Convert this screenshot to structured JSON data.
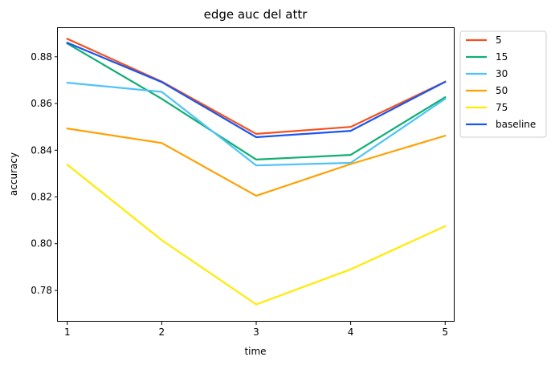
{
  "chart_data": {
    "type": "line",
    "title": "edge auc del attr",
    "xlabel": "time",
    "ylabel": "accuracy",
    "x": [
      1,
      2,
      3,
      4,
      5
    ],
    "xticks": [
      "1",
      "2",
      "3",
      "4",
      "5"
    ],
    "yticks": [
      "0.78",
      "0.80",
      "0.82",
      "0.84",
      "0.86",
      "0.88"
    ],
    "xlim": [
      0.9,
      5.1
    ],
    "ylim": [
      0.7666,
      0.8923
    ],
    "grid": false,
    "legend_position": "outside-top-right",
    "series": [
      {
        "name": "5",
        "color": "#F4511E",
        "values": [
          0.8877,
          0.8694,
          0.847,
          0.85,
          0.8693
        ]
      },
      {
        "name": "15",
        "color": "#0FAF72",
        "values": [
          0.8857,
          0.862,
          0.836,
          0.838,
          0.8627
        ]
      },
      {
        "name": "30",
        "color": "#4FC3F7",
        "values": [
          0.8689,
          0.865,
          0.8335,
          0.8346,
          0.862
        ]
      },
      {
        "name": "50",
        "color": "#FFA000",
        "values": [
          0.8493,
          0.8431,
          0.8205,
          0.8341,
          0.8462
        ]
      },
      {
        "name": "75",
        "color": "#FFEB00",
        "values": [
          0.8338,
          0.8015,
          0.774,
          0.789,
          0.8075
        ]
      },
      {
        "name": "baseline",
        "color": "#1A56F0",
        "values": [
          0.886,
          0.8692,
          0.8456,
          0.8483,
          0.8693
        ]
      }
    ]
  }
}
